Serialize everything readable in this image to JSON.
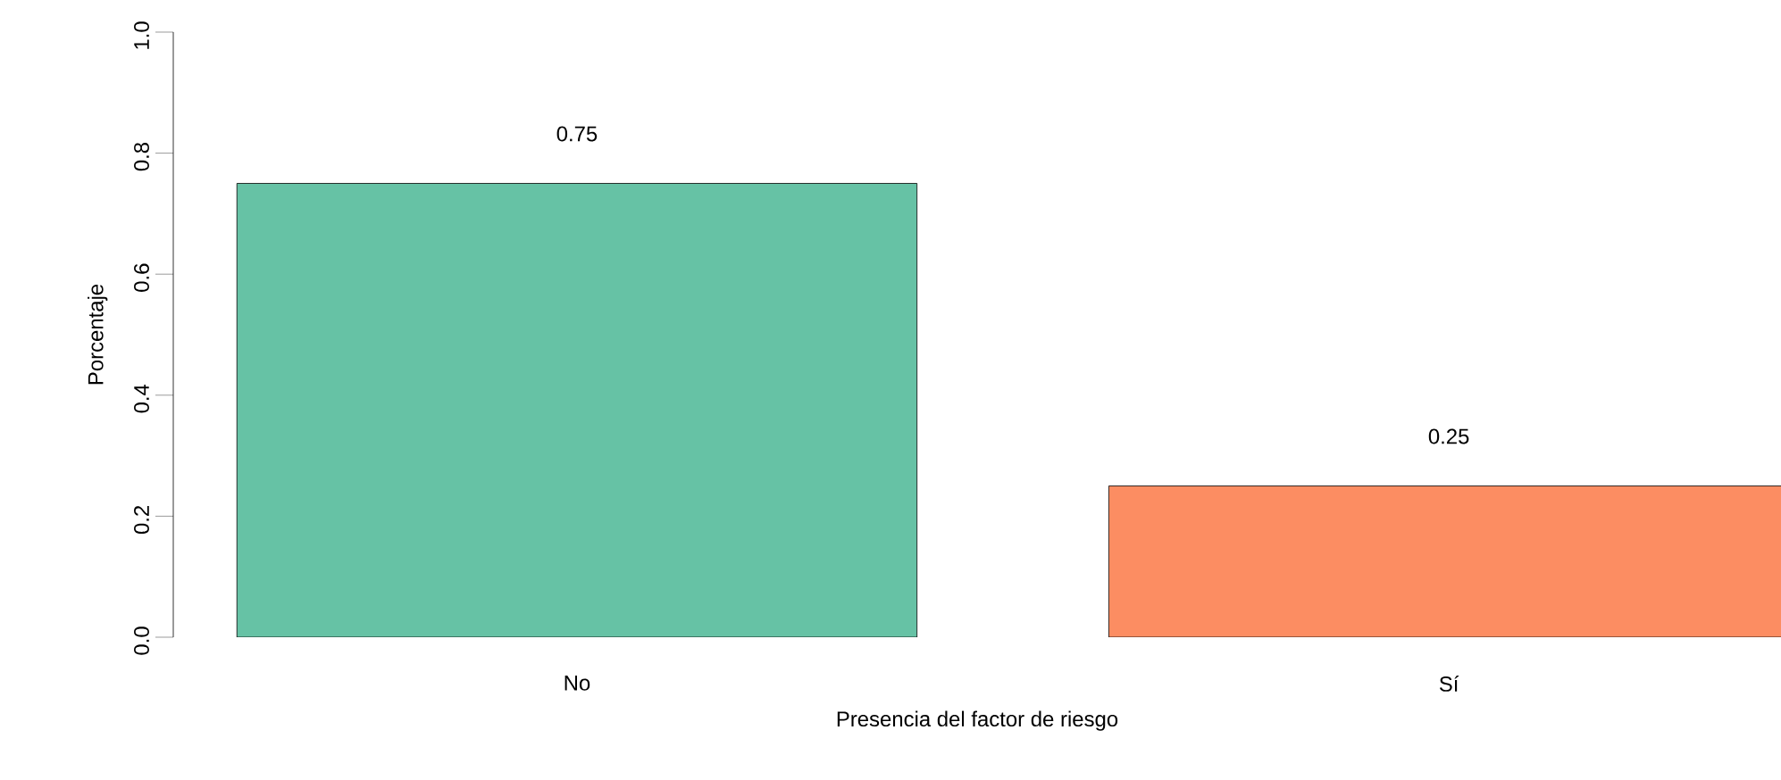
{
  "chart_data": {
    "type": "bar",
    "xlabel": "Presencia del factor de riesgo",
    "ylabel": "Porcentaje",
    "categories": [
      "No",
      "Sí"
    ],
    "values": [
      0.75,
      0.25
    ],
    "colors": [
      "#66c2a5",
      "#fc8d62"
    ],
    "ylim": [
      0,
      1
    ],
    "yticks": [
      {
        "value": 0,
        "label": "0.0"
      },
      {
        "value": 0.2,
        "label": "0.2"
      },
      {
        "value": 0.4,
        "label": "0.4"
      },
      {
        "value": 0.6,
        "label": "0.6"
      },
      {
        "value": 0.8,
        "label": "0.8"
      },
      {
        "value": 1,
        "label": "1.0"
      }
    ],
    "data_labels": true,
    "grid": false
  }
}
